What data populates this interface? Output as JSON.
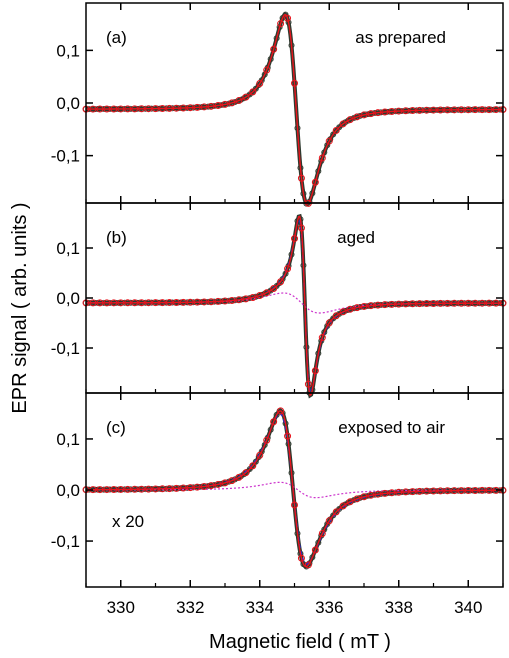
{
  "chart_data": {
    "type": "line",
    "xlabel": "Magnetic field ( mT )",
    "ylabel": "EPR signal ( arb. units )",
    "xlim": [
      329,
      341
    ],
    "xticks": [
      330,
      332,
      334,
      336,
      338,
      340
    ],
    "xtick_labels": [
      "330",
      "332",
      "334",
      "336",
      "338",
      "340"
    ],
    "yticks": [
      -0.1,
      0.0,
      0.1
    ],
    "ytick_labels": [
      "-0,1",
      "0,0",
      "0,1"
    ],
    "grid": false,
    "colors": {
      "measured": "#2f3a2f",
      "fit": "#e8141c",
      "component_broad": "#2b2bd6",
      "component_dashed": "#cc33cc"
    },
    "panels": [
      {
        "label": "(a)",
        "title": "as prepared",
        "note": "",
        "ylim": [
          -0.19,
          0.19
        ],
        "baseline": -0.012,
        "components": [
          {
            "role": "main",
            "center": 335.05,
            "amplitude": 0.18,
            "halfwidth": 0.55
          }
        ],
        "series": [
          {
            "role": "measured",
            "style": "markers",
            "values_x": [
              329,
              330,
              331,
              332,
              333,
              334,
              334.5,
              335.05,
              335.6,
              336,
              337,
              338,
              339,
              340,
              341
            ]
          },
          {
            "role": "fit",
            "style": "solid"
          }
        ]
      },
      {
        "label": "(b)",
        "title": "aged",
        "note": "",
        "ylim": [
          -0.19,
          0.19
        ],
        "baseline": -0.01,
        "components": [
          {
            "role": "main",
            "center": 335.3,
            "amplitude": 0.17,
            "halfwidth": 0.27
          },
          {
            "role": "broad",
            "center": 335.2,
            "amplitude": 0.02,
            "halfwidth": 0.9
          }
        ],
        "series": [
          {
            "role": "measured",
            "style": "markers"
          },
          {
            "role": "fit",
            "style": "solid"
          },
          {
            "role": "component_broad",
            "style": "dashed"
          },
          {
            "role": "component_dashed",
            "style": "dotted"
          }
        ]
      },
      {
        "label": "(c)",
        "title": "exposed to air",
        "note": "x 20",
        "ylim": [
          -0.19,
          0.19
        ],
        "baseline": 0.0,
        "components": [
          {
            "role": "main",
            "center": 334.95,
            "amplitude": 0.14,
            "halfwidth": 0.62
          },
          {
            "role": "broad",
            "center": 335.1,
            "amplitude": 0.015,
            "halfwidth": 0.9
          }
        ],
        "series": [
          {
            "role": "measured",
            "style": "markers"
          },
          {
            "role": "fit",
            "style": "solid"
          },
          {
            "role": "component_broad",
            "style": "dashed"
          },
          {
            "role": "component_dashed",
            "style": "dotted"
          }
        ]
      }
    ]
  }
}
